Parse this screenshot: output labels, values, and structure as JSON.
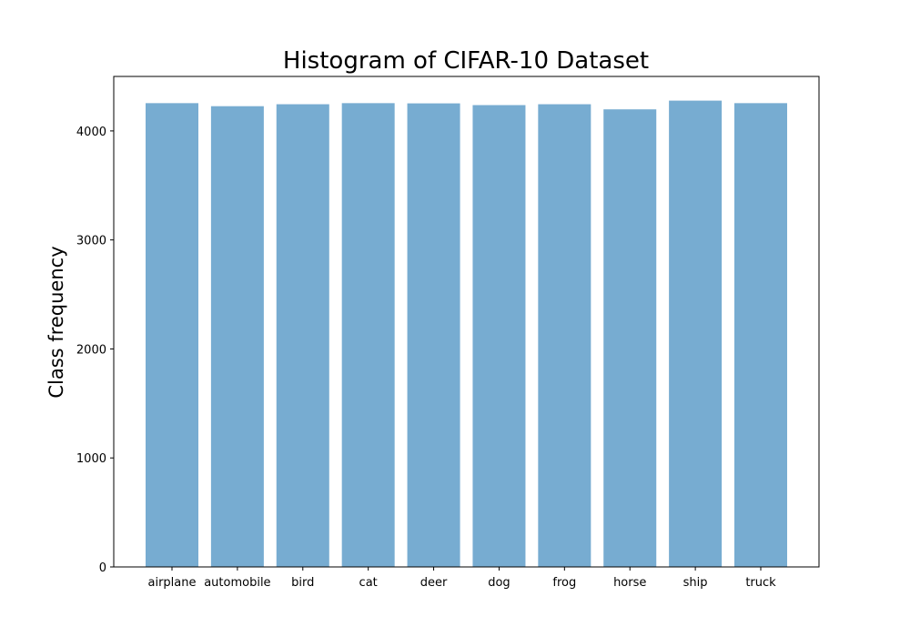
{
  "chart_data": {
    "type": "bar",
    "title": "Histogram of CIFAR-10 Dataset",
    "xlabel": "",
    "ylabel": "Class frequency",
    "categories": [
      "airplane",
      "automobile",
      "bird",
      "cat",
      "deer",
      "dog",
      "frog",
      "horse",
      "ship",
      "truck"
    ],
    "values": [
      4255,
      4227,
      4245,
      4255,
      4253,
      4237,
      4245,
      4198,
      4278,
      4255
    ],
    "ylim": [
      0,
      4500
    ],
    "yticks": [
      0,
      1000,
      2000,
      3000,
      4000
    ],
    "ytick_labels": [
      "0",
      "1000",
      "2000",
      "3000",
      "4000"
    ],
    "bar_color": "#77acd1",
    "grid": false
  }
}
